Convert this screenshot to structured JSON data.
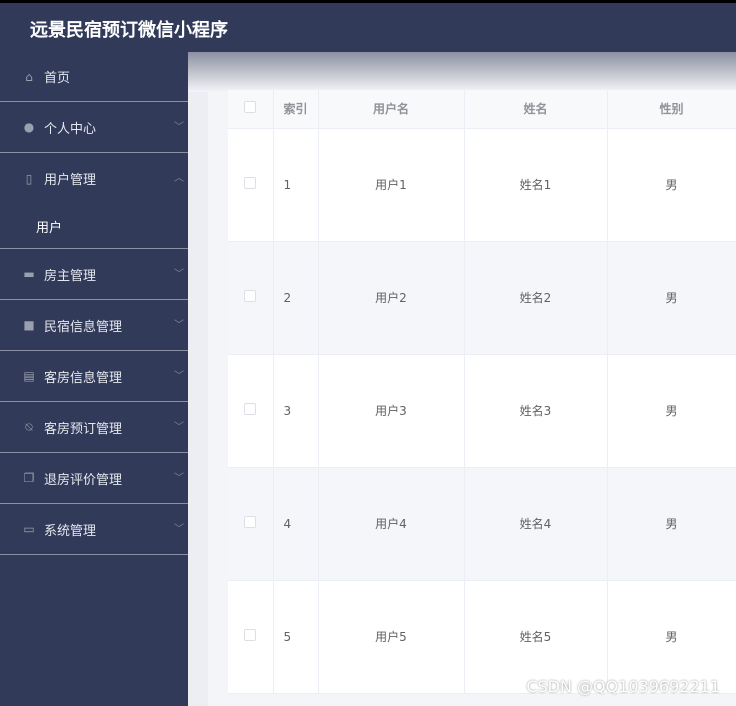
{
  "app": {
    "title": "远景民宿预订微信小程序"
  },
  "sidebar": {
    "items": [
      {
        "label": "首页",
        "icon": "home-icon"
      },
      {
        "label": "个人中心",
        "icon": "user-icon"
      },
      {
        "label": "用户管理",
        "icon": "phone-icon",
        "open": true,
        "children": [
          {
            "label": "用户"
          }
        ]
      },
      {
        "label": "房主管理",
        "icon": "message-icon"
      },
      {
        "label": "民宿信息管理",
        "icon": "monitor-icon"
      },
      {
        "label": "客房信息管理",
        "icon": "clipboard-icon"
      },
      {
        "label": "客房预订管理",
        "icon": "bell-off-icon"
      },
      {
        "label": "退房评价管理",
        "icon": "copy-icon"
      },
      {
        "label": "系统管理",
        "icon": "card-icon"
      }
    ]
  },
  "table": {
    "headers": [
      "索引",
      "用户名",
      "姓名",
      "性别"
    ],
    "rows": [
      [
        "1",
        "用户1",
        "姓名1",
        "男"
      ],
      [
        "2",
        "用户2",
        "姓名2",
        "男"
      ],
      [
        "3",
        "用户3",
        "姓名3",
        "男"
      ],
      [
        "4",
        "用户4",
        "姓名4",
        "男"
      ],
      [
        "5",
        "用户5",
        "姓名5",
        "男"
      ]
    ]
  },
  "watermark": "CSDN @QQ1039692211"
}
